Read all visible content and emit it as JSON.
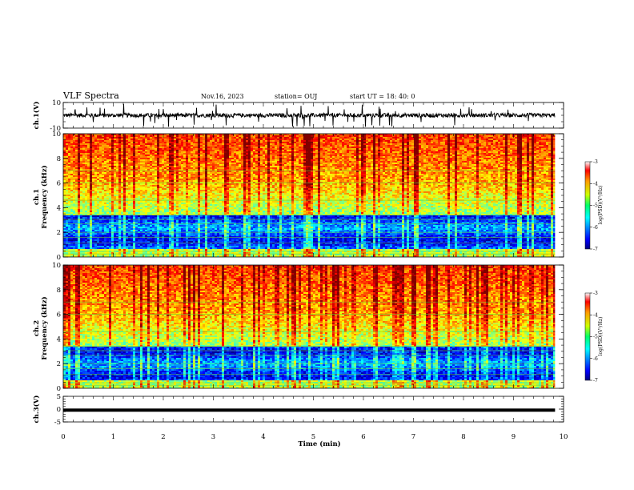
{
  "header": {
    "title": "VLF Spectra",
    "date": "Nov.16, 2023",
    "station": "station= OUJ",
    "start": "start  UT  =    18: 40: 0"
  },
  "chart_data": [
    {
      "type": "line",
      "name": "ch1-waveform",
      "ylabel": "ch.1(V)",
      "ylim": [
        -10,
        10
      ],
      "yticks": [
        "10",
        "-10"
      ],
      "xlim": [
        0,
        10
      ],
      "data_end_min": 9.83
    },
    {
      "type": "heatmap",
      "name": "ch1-spectrogram",
      "ylabel": "ch.1\nFrequency (kHz)",
      "ylim": [
        0,
        10
      ],
      "yticks": [
        "0",
        "2",
        "4",
        "6",
        "8",
        "10"
      ],
      "xlim": [
        0,
        10
      ],
      "colorbar": {
        "label": "log(PSD)(V²/Hz)",
        "range": [
          -7,
          -3
        ],
        "ticks": [
          "-3",
          "-4",
          "-5",
          "-6",
          "-7"
        ],
        "colormap": "jet"
      }
    },
    {
      "type": "heatmap",
      "name": "ch2-spectrogram",
      "ylabel": "ch.2\nFrequency (kHz)",
      "ylim": [
        0,
        10
      ],
      "yticks": [
        "0",
        "2",
        "4",
        "6",
        "8",
        "10"
      ],
      "xlim": [
        0,
        10
      ],
      "colorbar": {
        "label": "log(PSD)(V²/Hz)",
        "range": [
          -7,
          -3
        ],
        "ticks": [
          "-3",
          "-4",
          "-5",
          "-6",
          "-7"
        ],
        "colormap": "jet"
      }
    },
    {
      "type": "line",
      "name": "ch3-waveform",
      "ylabel": "ch.3(V)",
      "ylim": [
        -5,
        5
      ],
      "yticks": [
        "5",
        "0",
        "-5"
      ],
      "xlim": [
        0,
        10
      ],
      "constant_value": -0.4
    }
  ],
  "xaxis": {
    "label": "Time  (min)",
    "ticks": [
      "0",
      "1",
      "2",
      "3",
      "4",
      "5",
      "6",
      "7",
      "8",
      "9",
      "10"
    ]
  },
  "ylabels": {
    "ch1_wave": "ch.1(V)",
    "ch1_spec_a": "ch.1",
    "ch1_spec_b": "Frequency  (kHz)",
    "ch2_spec_a": "ch.2",
    "ch2_spec_b": "Frequency  (kHz)",
    "ch3_wave": "ch.3(V)"
  },
  "colorbar_label": "log(PSD)(V²/Hz)"
}
